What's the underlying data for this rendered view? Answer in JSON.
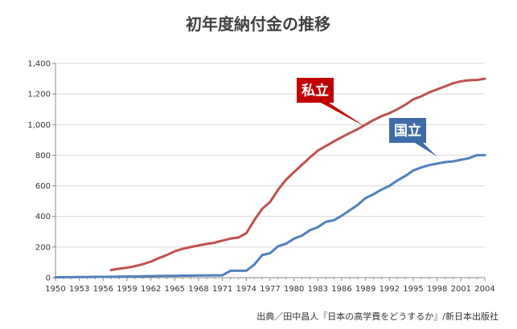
{
  "chart_data": {
    "type": "line",
    "title": "初年度納付金の推移",
    "source": "出典／田中昌人『日本の高学費をどうするか』/新日本出版社",
    "xlabel": "",
    "ylabel": "",
    "xlim": [
      1950,
      2004
    ],
    "ylim": [
      0,
      1400
    ],
    "y_ticks": [
      0,
      200,
      400,
      600,
      800,
      1000,
      1200,
      1400
    ],
    "y_tick_labels": [
      "0",
      "200",
      "400",
      "600",
      "800",
      "1,000",
      "1,200",
      "1,400"
    ],
    "x_tick_labels": [
      "1950",
      "1953",
      "1956",
      "1959",
      "1962",
      "1965",
      "1968",
      "1971",
      "1974",
      "1977",
      "1980",
      "1983",
      "1986",
      "1989",
      "1992",
      "1995",
      "1998",
      "2001",
      "2004"
    ],
    "grid": true,
    "series": [
      {
        "name": "私立",
        "color": "#c0504d",
        "x": [
          1957,
          1958,
          1959,
          1960,
          1961,
          1962,
          1963,
          1964,
          1965,
          1966,
          1967,
          1968,
          1969,
          1970,
          1971,
          1972,
          1973,
          1974,
          1975,
          1976,
          1977,
          1978,
          1979,
          1980,
          1981,
          1982,
          1983,
          1984,
          1985,
          1986,
          1987,
          1988,
          1989,
          1990,
          1991,
          1992,
          1993,
          1994,
          1995,
          1996,
          1997,
          1998,
          1999,
          2000,
          2001,
          2002,
          2003,
          2004
        ],
        "y": [
          50,
          58,
          65,
          75,
          88,
          105,
          128,
          148,
          172,
          188,
          200,
          210,
          220,
          228,
          242,
          255,
          262,
          290,
          375,
          450,
          495,
          575,
          640,
          690,
          738,
          785,
          830,
          860,
          890,
          918,
          945,
          970,
          1000,
          1030,
          1055,
          1075,
          1100,
          1130,
          1165,
          1185,
          1210,
          1230,
          1250,
          1270,
          1283,
          1290,
          1292,
          1300
        ]
      },
      {
        "name": "国立",
        "color": "#4f81bd",
        "x": [
          1950,
          1951,
          1952,
          1953,
          1954,
          1955,
          1956,
          1957,
          1958,
          1959,
          1960,
          1961,
          1962,
          1963,
          1964,
          1965,
          1966,
          1967,
          1968,
          1969,
          1970,
          1971,
          1972,
          1973,
          1974,
          1975,
          1976,
          1977,
          1978,
          1979,
          1980,
          1981,
          1982,
          1983,
          1984,
          1985,
          1986,
          1987,
          1988,
          1989,
          1990,
          1991,
          1992,
          1993,
          1994,
          1995,
          1996,
          1997,
          1998,
          1999,
          2000,
          2001,
          2002,
          2003,
          2004
        ],
        "y": [
          2,
          3,
          3,
          4,
          4,
          5,
          5,
          6,
          7,
          8,
          8,
          9,
          10,
          11,
          12,
          12,
          13,
          13,
          14,
          14,
          15,
          15,
          45,
          45,
          45,
          85,
          148,
          160,
          205,
          222,
          255,
          275,
          310,
          330,
          365,
          375,
          405,
          440,
          475,
          520,
          545,
          575,
          600,
          635,
          665,
          700,
          720,
          735,
          745,
          755,
          760,
          770,
          780,
          800,
          800
        ]
      }
    ],
    "annotations": [
      {
        "text": "私立",
        "series": "私立",
        "color": "#c00000",
        "target_x": 1989,
        "target_y": 985
      },
      {
        "text": "国立",
        "series": "国立",
        "color": "#3f6ca8",
        "target_x": 1998,
        "target_y": 790
      }
    ]
  }
}
